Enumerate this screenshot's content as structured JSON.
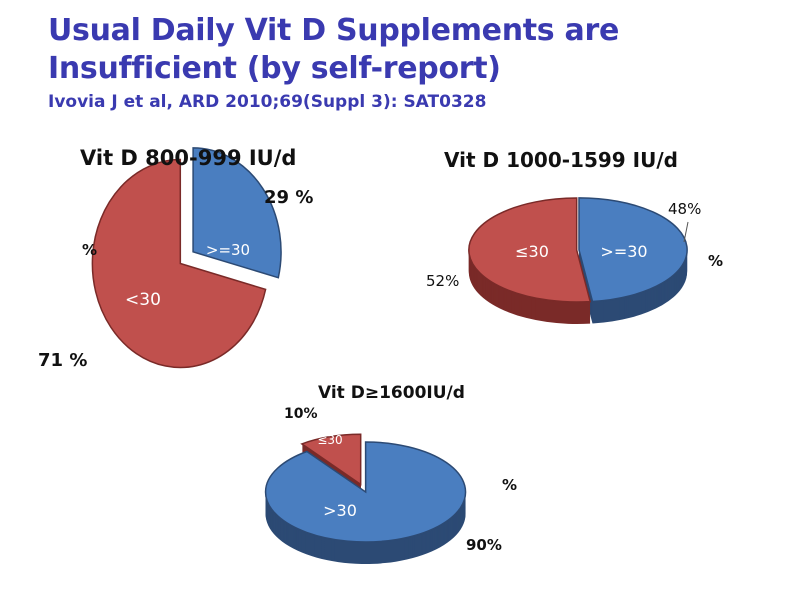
{
  "slide": {
    "title_line1": "Usual Daily Vit D Supplements are",
    "title_line2": "Insufficient (by self-report)",
    "citation": "Ivovia J et al, ARD 2010;69(Suppl 3): SAT0328"
  },
  "colors": {
    "blue": "#4a7ec0",
    "blue_dark": "#2c4a74",
    "red": "#c0504d",
    "red_dark": "#7a2a28",
    "title": "#3a3ab0"
  },
  "chart_data": [
    {
      "type": "pie",
      "title": "Vit D 800-999 IU/d",
      "style": "3d-exploded",
      "slices": [
        {
          "label": ">=30",
          "value": 29,
          "value_label": "29 %",
          "color": "#4a7ec0"
        },
        {
          "label": "<30",
          "value": 71,
          "value_label": "71 %",
          "color": "#c0504d"
        }
      ],
      "stray_label": "%"
    },
    {
      "type": "pie",
      "title": "Vit D 1000-1599 IU/d",
      "style": "3d",
      "slices": [
        {
          "label": ">=30",
          "value": 48,
          "value_label": "48%",
          "color": "#4a7ec0"
        },
        {
          "label": "≤30",
          "value": 52,
          "value_label": "52%",
          "color": "#c0504d"
        }
      ],
      "stray_label": "%"
    },
    {
      "type": "pie",
      "title": "Vit D≥1600IU/d",
      "style": "3d-exploded",
      "slices": [
        {
          "label": ">30",
          "value": 90,
          "value_label": "90%",
          "color": "#4a7ec0"
        },
        {
          "label": "≤30",
          "value": 10,
          "value_label": "10%",
          "color": "#c0504d"
        }
      ],
      "stray_label": "%"
    }
  ]
}
